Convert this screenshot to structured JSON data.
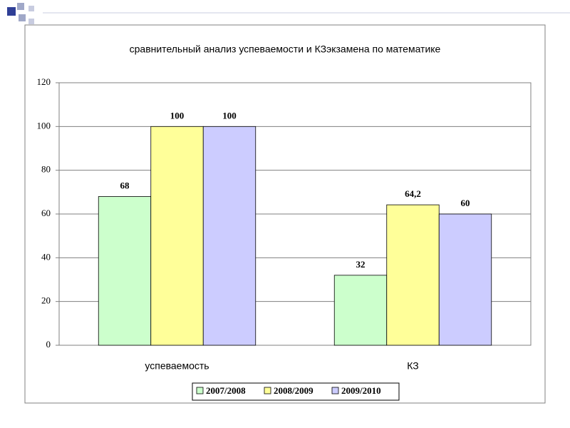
{
  "chart_data": {
    "type": "bar",
    "title": "сравнительный анализ успеваемости и КЗэкзамена  по математике",
    "categories": [
      "успеваемость",
      "КЗ"
    ],
    "series": [
      {
        "name": "2007/2008",
        "color": "#ccffcc",
        "values": [
          68,
          32
        ]
      },
      {
        "name": "2008/2009",
        "color": "#ffff99",
        "values": [
          100,
          64.2
        ],
        "value_labels": [
          "100",
          "64,2"
        ]
      },
      {
        "name": "2009/2010",
        "color": "#ccccff",
        "values": [
          100,
          60
        ]
      }
    ],
    "ylim": [
      0,
      120
    ],
    "yticks": [
      0,
      20,
      40,
      60,
      80,
      100,
      120
    ],
    "grid": true,
    "legend": "bottom"
  }
}
